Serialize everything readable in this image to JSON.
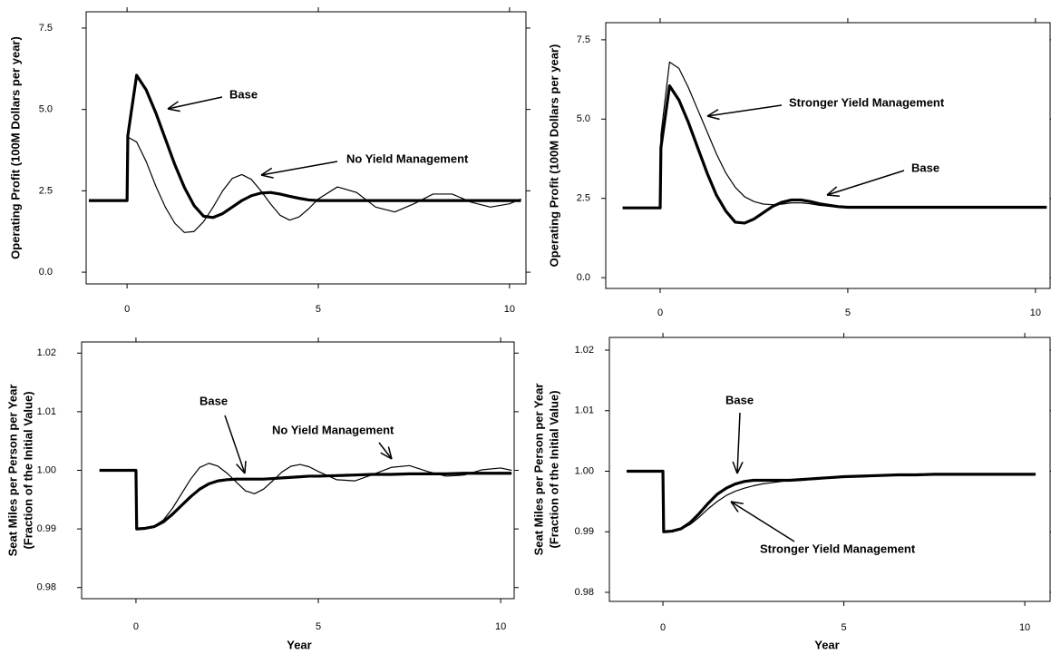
{
  "chart_data": [
    {
      "type": "line",
      "ylabel": "Operating Profit (100M Dollars per year)",
      "x": [
        -1.0,
        0,
        0.02,
        0.25,
        0.5,
        0.75,
        1,
        1.25,
        1.5,
        1.75,
        2,
        2.25,
        2.5,
        2.75,
        3,
        3.25,
        3.5,
        3.75,
        4,
        4.25,
        4.5,
        4.75,
        5,
        5.5,
        6,
        6.5,
        7,
        7.5,
        8,
        8.5,
        9,
        9.5,
        10,
        10.3
      ],
      "xlim": [
        -1.07,
        10.43
      ],
      "xticks": [
        0,
        5,
        10
      ],
      "ylim": [
        -0.36,
        8.0
      ],
      "yticks": [
        {
          "value": 0,
          "label": "0.0"
        },
        2.5,
        {
          "value": 5,
          "label": "5.0"
        },
        7.5
      ],
      "legend": false,
      "series": [
        {
          "name": "Base",
          "color": "#000000",
          "line_width": 3.2,
          "values": [
            2.2,
            2.2,
            4.2,
            6.05,
            5.6,
            4.9,
            4.1,
            3.3,
            2.6,
            2.05,
            1.72,
            1.68,
            1.8,
            2.0,
            2.2,
            2.35,
            2.43,
            2.45,
            2.4,
            2.33,
            2.27,
            2.22,
            2.2,
            2.2,
            2.2,
            2.2,
            2.2,
            2.2,
            2.2,
            2.2,
            2.2,
            2.2,
            2.2,
            2.2
          ]
        },
        {
          "name": "No Yield Management",
          "color": "#000000",
          "line_width": 1.2,
          "values": [
            2.2,
            2.2,
            4.15,
            4.0,
            3.4,
            2.65,
            2.0,
            1.5,
            1.22,
            1.25,
            1.55,
            2.0,
            2.5,
            2.88,
            3.0,
            2.85,
            2.5,
            2.1,
            1.75,
            1.6,
            1.7,
            1.95,
            2.25,
            2.62,
            2.45,
            2.0,
            1.85,
            2.1,
            2.4,
            2.4,
            2.15,
            2.0,
            2.1,
            2.25
          ]
        }
      ]
    },
    {
      "type": "line",
      "ylabel": "Operating Profit (100M Dollars per year)",
      "x": [
        -1.0,
        0,
        0.02,
        0.25,
        0.5,
        0.75,
        1,
        1.25,
        1.5,
        1.75,
        2,
        2.25,
        2.5,
        2.75,
        3,
        3.25,
        3.5,
        3.75,
        4,
        4.25,
        4.5,
        4.75,
        5,
        5.5,
        6,
        6.5,
        7,
        7.5,
        8,
        8.5,
        9,
        9.5,
        10,
        10.3
      ],
      "xlim": [
        -1.45,
        10.39
      ],
      "xticks": [
        0,
        5,
        10
      ],
      "ylim": [
        -0.34,
        8.04
      ],
      "yticks": [
        {
          "value": 0,
          "label": "0.0"
        },
        2.5,
        {
          "value": 5,
          "label": "5.0"
        },
        7.5
      ],
      "legend": false,
      "series": [
        {
          "name": "Base",
          "color": "#000000",
          "line_width": 3.2,
          "values": [
            2.2,
            2.2,
            4.1,
            6.05,
            5.6,
            4.9,
            4.1,
            3.3,
            2.6,
            2.1,
            1.75,
            1.72,
            1.85,
            2.05,
            2.25,
            2.38,
            2.45,
            2.45,
            2.4,
            2.33,
            2.28,
            2.24,
            2.22,
            2.22,
            2.22,
            2.22,
            2.22,
            2.22,
            2.22,
            2.22,
            2.22,
            2.22,
            2.22,
            2.22
          ]
        },
        {
          "name": "Stronger Yield Management",
          "color": "#000000",
          "line_width": 1.2,
          "values": [
            2.2,
            2.2,
            4.5,
            6.8,
            6.6,
            6.0,
            5.3,
            4.6,
            3.9,
            3.3,
            2.85,
            2.55,
            2.4,
            2.32,
            2.3,
            2.32,
            2.36,
            2.36,
            2.33,
            2.28,
            2.25,
            2.23,
            2.22,
            2.22,
            2.22,
            2.22,
            2.22,
            2.22,
            2.22,
            2.22,
            2.22,
            2.22,
            2.22,
            2.22
          ]
        }
      ]
    },
    {
      "type": "line",
      "ylabel": [
        "Seat Miles per Person per Year",
        "(Fraction of the Initial Value)"
      ],
      "xlabel": "Year",
      "x": [
        -1.0,
        0,
        0.02,
        0.25,
        0.5,
        0.75,
        1,
        1.25,
        1.5,
        1.75,
        2,
        2.25,
        2.5,
        2.75,
        3,
        3.25,
        3.5,
        3.75,
        4,
        4.25,
        4.5,
        4.75,
        5,
        5.5,
        6,
        6.5,
        7,
        7.5,
        8,
        8.5,
        9,
        9.5,
        10,
        10.3
      ],
      "xlim": [
        -1.49,
        10.37
      ],
      "xticks": [
        0,
        5,
        10
      ],
      "ylim": [
        0.9781,
        1.0219
      ],
      "yticks": [
        0.98,
        0.99,
        {
          "value": 1,
          "label": "1.00"
        },
        1.01,
        1.02
      ],
      "legend": false,
      "series": [
        {
          "name": "Base",
          "color": "#000000",
          "line_width": 3.2,
          "values": [
            1,
            1,
            0.99,
            0.9901,
            0.9904,
            0.9912,
            0.9925,
            0.994,
            0.9955,
            0.9968,
            0.9977,
            0.9982,
            0.9984,
            0.9985,
            0.9985,
            0.9985,
            0.9985,
            0.9986,
            0.9987,
            0.9988,
            0.9989,
            0.999,
            0.999,
            0.9991,
            0.9992,
            0.9993,
            0.9993,
            0.9994,
            0.9994,
            0.9994,
            0.9995,
            0.9995,
            0.9995,
            0.9995
          ]
        },
        {
          "name": "No Yield Management",
          "color": "#000000",
          "line_width": 1.2,
          "values": [
            1,
            1,
            0.99,
            0.9902,
            0.9905,
            0.9915,
            0.9935,
            0.996,
            0.9985,
            1.0005,
            1.0012,
            1.0007,
            0.9995,
            0.998,
            0.9965,
            0.996,
            0.9968,
            0.9982,
            0.9997,
            1.0007,
            1.001,
            1.0006,
            0.9998,
            0.9984,
            0.9982,
            0.9993,
            1.0005,
            1.0008,
            0.9998,
            0.999,
            0.9992,
            1.0001,
            1.0004,
            1
          ]
        }
      ]
    },
    {
      "type": "line",
      "ylabel": [
        "Seat Miles per Person per Year",
        "(Fraction of the Initial Value)"
      ],
      "xlabel": "Year",
      "x": [
        -1.0,
        0,
        0.02,
        0.25,
        0.5,
        0.75,
        1,
        1.25,
        1.5,
        1.75,
        2,
        2.25,
        2.5,
        2.75,
        3,
        3.25,
        3.5,
        3.75,
        4,
        4.25,
        4.5,
        4.75,
        5,
        5.5,
        6,
        6.5,
        7,
        7.5,
        8,
        8.5,
        9,
        9.5,
        10,
        10.3
      ],
      "xlim": [
        -1.48,
        10.7
      ],
      "xticks": [
        0,
        5,
        10
      ],
      "ylim": [
        0.9785,
        1.0221
      ],
      "yticks": [
        0.98,
        0.99,
        {
          "value": 1,
          "label": "1.00"
        },
        1.01,
        1.02
      ],
      "legend": false,
      "series": [
        {
          "name": "Base",
          "color": "#000000",
          "line_width": 3.2,
          "values": [
            1,
            1,
            0.99,
            0.9901,
            0.9905,
            0.9915,
            0.993,
            0.9947,
            0.9962,
            0.9972,
            0.9979,
            0.9983,
            0.9985,
            0.9985,
            0.9985,
            0.9985,
            0.9985,
            0.9986,
            0.9987,
            0.9988,
            0.9989,
            0.999,
            0.9991,
            0.9992,
            0.9993,
            0.9994,
            0.9994,
            0.9995,
            0.9995,
            0.9995,
            0.9995,
            0.9995,
            0.9995,
            0.9995
          ]
        },
        {
          "name": "Stronger Yield Management",
          "color": "#000000",
          "line_width": 1.2,
          "values": [
            1,
            1,
            0.99,
            0.9901,
            0.9904,
            0.9912,
            0.9924,
            0.9938,
            0.995,
            0.996,
            0.9967,
            0.9972,
            0.9976,
            0.9979,
            0.9981,
            0.9983,
            0.9985,
            0.9986,
            0.9987,
            0.9988,
            0.9989,
            0.999,
            0.999,
            0.9991,
            0.9992,
            0.9993,
            0.9994,
            0.9994,
            0.9995,
            0.9995,
            0.9995,
            0.9995,
            0.9995,
            0.9995
          ]
        }
      ]
    }
  ]
}
